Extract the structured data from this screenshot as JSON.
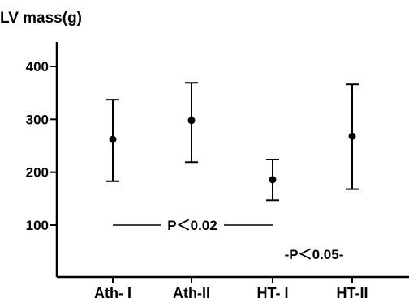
{
  "chart_data": {
    "type": "scatter",
    "title": "LV mass(g)",
    "xlabel": "",
    "ylabel": "",
    "categories": [
      "Ath- I",
      "Ath-II",
      "HT- I",
      "HT-II"
    ],
    "series": [
      {
        "values": [
          262,
          298,
          186,
          268
        ],
        "error_low": [
          183,
          219,
          147,
          168
        ],
        "error_high": [
          337,
          369,
          224,
          366
        ]
      }
    ],
    "ylim": [
      0,
      450
    ],
    "yticks": [
      100,
      200,
      300,
      400
    ],
    "grid": false,
    "annotations": [
      {
        "text": "P＜0.02",
        "line_from": 0,
        "line_to": 2,
        "y_value": 100
      },
      {
        "text": "-P＜0.05-",
        "near_category": 2.5,
        "y_value": 45
      }
    ],
    "colors": {
      "marker": "#000000",
      "axis": "#000000"
    }
  }
}
